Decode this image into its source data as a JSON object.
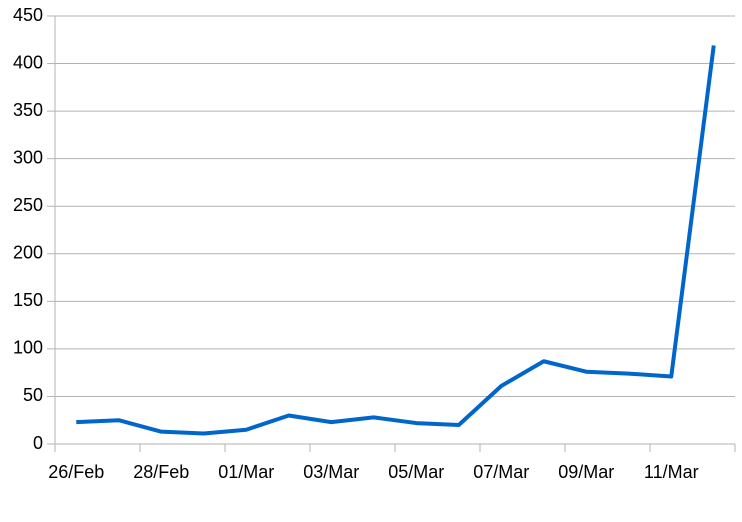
{
  "chart_data": {
    "type": "line",
    "categories": [
      "26/Feb",
      null,
      "28/Feb",
      null,
      "01/Mar",
      null,
      "03/Mar",
      null,
      "05/Mar",
      null,
      "07/Mar",
      null,
      "09/Mar",
      null,
      "11/Mar",
      null
    ],
    "values": [
      23,
      25,
      13,
      11,
      15,
      30,
      23,
      28,
      22,
      20,
      61,
      87,
      76,
      74,
      71,
      419
    ],
    "color": "#0066cc",
    "ylim": [
      0,
      450
    ],
    "yticks": [
      0,
      50,
      100,
      150,
      200,
      250,
      300,
      350,
      400,
      450
    ],
    "grid": true
  }
}
